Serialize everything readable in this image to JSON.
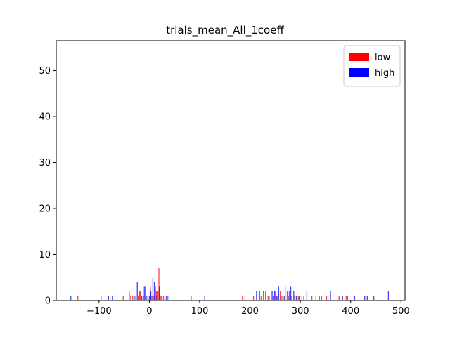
{
  "chart_data": {
    "type": "bar",
    "title": "trials_mean_All_1coeff",
    "xlabel": "",
    "ylabel": "",
    "xlim": [
      -185,
      508
    ],
    "ylim": [
      0,
      56.5
    ],
    "x_ticks": [
      -100,
      0,
      100,
      200,
      300,
      400,
      500
    ],
    "y_ticks": [
      0,
      10,
      20,
      30,
      40,
      50
    ],
    "x_tick_labels": [
      "−100",
      "0",
      "100",
      "200",
      "300",
      "400",
      "500"
    ],
    "y_tick_labels": [
      "0",
      "10",
      "20",
      "30",
      "40",
      "50"
    ],
    "grid": false,
    "legend_position": "top-right",
    "bin_width": 1.8,
    "series": [
      {
        "name": "low",
        "color": "#ff0000",
        "points": [
          {
            "x": -142,
            "count": 1
          },
          {
            "x": -52,
            "count": 1
          },
          {
            "x": -37,
            "count": 1
          },
          {
            "x": -33,
            "count": 1
          },
          {
            "x": -27,
            "count": 1
          },
          {
            "x": -22,
            "count": 1
          },
          {
            "x": -18,
            "count": 2
          },
          {
            "x": -12,
            "count": 1
          },
          {
            "x": -8,
            "count": 3
          },
          {
            "x": -3,
            "count": 1
          },
          {
            "x": 2,
            "count": 3
          },
          {
            "x": 5,
            "count": 1
          },
          {
            "x": 9,
            "count": 1
          },
          {
            "x": 12,
            "count": 3
          },
          {
            "x": 14,
            "count": 2
          },
          {
            "x": 17,
            "count": 2
          },
          {
            "x": 19,
            "count": 7
          },
          {
            "x": 23,
            "count": 1
          },
          {
            "x": 28,
            "count": 1
          },
          {
            "x": 31,
            "count": 1
          },
          {
            "x": 36,
            "count": 1
          },
          {
            "x": 185,
            "count": 1
          },
          {
            "x": 190,
            "count": 1
          },
          {
            "x": 207,
            "count": 1
          },
          {
            "x": 222,
            "count": 1
          },
          {
            "x": 231,
            "count": 2
          },
          {
            "x": 236,
            "count": 1
          },
          {
            "x": 246,
            "count": 1
          },
          {
            "x": 251,
            "count": 2
          },
          {
            "x": 255,
            "count": 1
          },
          {
            "x": 260,
            "count": 2
          },
          {
            "x": 265,
            "count": 1
          },
          {
            "x": 270,
            "count": 3
          },
          {
            "x": 274,
            "count": 2
          },
          {
            "x": 278,
            "count": 2
          },
          {
            "x": 283,
            "count": 1
          },
          {
            "x": 289,
            "count": 1
          },
          {
            "x": 296,
            "count": 1
          },
          {
            "x": 303,
            "count": 1
          },
          {
            "x": 323,
            "count": 1
          },
          {
            "x": 331,
            "count": 1
          },
          {
            "x": 338,
            "count": 1
          },
          {
            "x": 352,
            "count": 1
          },
          {
            "x": 377,
            "count": 1
          },
          {
            "x": 391,
            "count": 1
          },
          {
            "x": 394,
            "count": 1
          }
        ]
      },
      {
        "name": "high",
        "color": "#0000ff",
        "points": [
          {
            "x": -156,
            "count": 1
          },
          {
            "x": -96,
            "count": 1
          },
          {
            "x": -81,
            "count": 1
          },
          {
            "x": -73,
            "count": 1
          },
          {
            "x": -40,
            "count": 2
          },
          {
            "x": -30,
            "count": 1
          },
          {
            "x": -24,
            "count": 4
          },
          {
            "x": -20,
            "count": 2
          },
          {
            "x": -15,
            "count": 1
          },
          {
            "x": -10,
            "count": 3
          },
          {
            "x": -6,
            "count": 1
          },
          {
            "x": 0,
            "count": 1
          },
          {
            "x": 3,
            "count": 2
          },
          {
            "x": 7,
            "count": 5
          },
          {
            "x": 10,
            "count": 4
          },
          {
            "x": 15,
            "count": 1
          },
          {
            "x": 20,
            "count": 3
          },
          {
            "x": 25,
            "count": 1
          },
          {
            "x": 34,
            "count": 1
          },
          {
            "x": 39,
            "count": 1
          },
          {
            "x": 83,
            "count": 1
          },
          {
            "x": 110,
            "count": 1
          },
          {
            "x": 213,
            "count": 2
          },
          {
            "x": 219,
            "count": 2
          },
          {
            "x": 227,
            "count": 2
          },
          {
            "x": 238,
            "count": 1
          },
          {
            "x": 244,
            "count": 2
          },
          {
            "x": 249,
            "count": 2
          },
          {
            "x": 253,
            "count": 1
          },
          {
            "x": 257,
            "count": 3
          },
          {
            "x": 262,
            "count": 1
          },
          {
            "x": 268,
            "count": 1
          },
          {
            "x": 276,
            "count": 1
          },
          {
            "x": 281,
            "count": 3
          },
          {
            "x": 287,
            "count": 2
          },
          {
            "x": 292,
            "count": 1
          },
          {
            "x": 298,
            "count": 1
          },
          {
            "x": 307,
            "count": 1
          },
          {
            "x": 313,
            "count": 2
          },
          {
            "x": 342,
            "count": 1
          },
          {
            "x": 355,
            "count": 1
          },
          {
            "x": 360,
            "count": 2
          },
          {
            "x": 384,
            "count": 1
          },
          {
            "x": 408,
            "count": 1
          },
          {
            "x": 428,
            "count": 1
          },
          {
            "x": 433,
            "count": 1
          },
          {
            "x": 446,
            "count": 1
          },
          {
            "x": 475,
            "count": 2
          }
        ]
      }
    ]
  }
}
